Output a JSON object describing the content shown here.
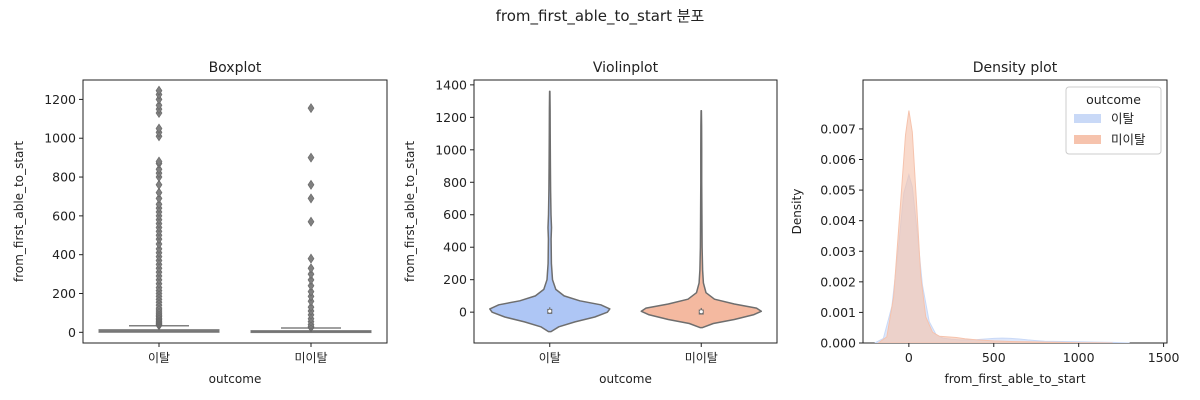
{
  "figure": {
    "title": "from_first_able_to_start 분포"
  },
  "chart_data": [
    {
      "type": "box",
      "title": "Boxplot",
      "xlabel": "outcome",
      "ylabel": "from_first_able_to_start",
      "categories": [
        "이탈",
        "미이탈"
      ],
      "ylim": [
        -55,
        1300
      ],
      "yticks": [
        0,
        200,
        400,
        600,
        800,
        1000,
        1200
      ],
      "box_color": "#808080",
      "boxes": [
        {
          "category": "이탈",
          "q1": 0,
          "median": 6,
          "q3": 14,
          "whisker_low": 0,
          "whisker_high": 34,
          "outliers": [
            36,
            40,
            45,
            52,
            58,
            65,
            72,
            80,
            88,
            95,
            105,
            115,
            125,
            140,
            155,
            170,
            185,
            200,
            215,
            230,
            250,
            270,
            290,
            310,
            330,
            350,
            370,
            390,
            410,
            430,
            455,
            480,
            500,
            520,
            540,
            560,
            580,
            600,
            620,
            640,
            660,
            690,
            720,
            760,
            800,
            820,
            840,
            870,
            880,
            1010,
            1030,
            1050,
            1130,
            1150,
            1170,
            1200,
            1225,
            1245
          ]
        },
        {
          "category": "미이탈",
          "q1": 0,
          "median": 3,
          "q3": 9,
          "whisker_low": 0,
          "whisker_high": 22,
          "outliers": [
            25,
            30,
            40,
            55,
            70,
            90,
            110,
            130,
            160,
            185,
            210,
            240,
            270,
            300,
            330,
            380,
            570,
            690,
            760,
            900,
            1155
          ]
        }
      ]
    },
    {
      "type": "violin",
      "title": "Violinplot",
      "xlabel": "outcome",
      "ylabel": "from_first_able_to_start",
      "categories": [
        "이탈",
        "미이탈"
      ],
      "ylim": [
        -190,
        1430
      ],
      "yticks": [
        0,
        200,
        400,
        600,
        800,
        1000,
        1200,
        1400
      ],
      "series": [
        {
          "category": "이탈",
          "color": "#aec6f5",
          "ymin": -120,
          "ymax": 1360,
          "q1": 0,
          "median": 6,
          "q3": 20,
          "profile": [
            [
              -120,
              0.02
            ],
            [
              -90,
              0.15
            ],
            [
              -60,
              0.42
            ],
            [
              -30,
              0.75
            ],
            [
              0,
              0.96
            ],
            [
              20,
              1.0
            ],
            [
              45,
              0.85
            ],
            [
              70,
              0.5
            ],
            [
              100,
              0.24
            ],
            [
              140,
              0.1
            ],
            [
              200,
              0.045
            ],
            [
              300,
              0.028
            ],
            [
              450,
              0.022
            ],
            [
              520,
              0.03
            ],
            [
              600,
              0.02
            ],
            [
              750,
              0.014
            ],
            [
              900,
              0.01
            ],
            [
              1100,
              0.008
            ],
            [
              1250,
              0.006
            ],
            [
              1360,
              0.002
            ]
          ]
        },
        {
          "category": "미이탈",
          "color": "#f4b9a0",
          "ymin": -95,
          "ymax": 1240,
          "q1": 0,
          "median": 3,
          "q3": 16,
          "profile": [
            [
              -95,
              0.02
            ],
            [
              -70,
              0.2
            ],
            [
              -45,
              0.55
            ],
            [
              -15,
              0.88
            ],
            [
              5,
              1.0
            ],
            [
              25,
              0.92
            ],
            [
              50,
              0.55
            ],
            [
              80,
              0.22
            ],
            [
              120,
              0.08
            ],
            [
              180,
              0.035
            ],
            [
              260,
              0.022
            ],
            [
              400,
              0.014
            ],
            [
              600,
              0.01
            ],
            [
              800,
              0.008
            ],
            [
              1000,
              0.007
            ],
            [
              1150,
              0.006
            ],
            [
              1240,
              0.002
            ]
          ]
        }
      ]
    },
    {
      "type": "area",
      "title": "Density plot",
      "xlabel": "from_first_able_to_start",
      "ylabel": "Density",
      "xlim": [
        -270,
        1520
      ],
      "ylim": [
        0,
        0.0086
      ],
      "xticks": [
        0,
        500,
        1000,
        1500
      ],
      "yticks": [
        0.0,
        0.001,
        0.002,
        0.003,
        0.004,
        0.005,
        0.006,
        0.007
      ],
      "ytick_labels": [
        "0.000",
        "0.001",
        "0.002",
        "0.003",
        "0.004",
        "0.005",
        "0.006",
        "0.007"
      ],
      "legend": {
        "title": "outcome",
        "position": "top-right"
      },
      "series": [
        {
          "name": "이탈",
          "color": "#c9d9f7",
          "x": [
            -200,
            -150,
            -100,
            -60,
            -30,
            0,
            20,
            50,
            80,
            120,
            160,
            200,
            250,
            300,
            350,
            400,
            450,
            500,
            550,
            600,
            650,
            700,
            750,
            800,
            900,
            1000,
            1100,
            1200,
            1300
          ],
          "y": [
            0.0,
            0.00015,
            0.0012,
            0.0032,
            0.0049,
            0.0055,
            0.0051,
            0.0036,
            0.0019,
            0.0007,
            0.00028,
            0.00016,
            0.00012,
            0.0001,
            0.0001,
            0.00011,
            0.00013,
            0.00015,
            0.00016,
            0.00015,
            0.00013,
            0.0001,
            8e-05,
            6e-05,
            5e-05,
            4e-05,
            3e-05,
            2e-05,
            0.0
          ]
        },
        {
          "name": "미이탈",
          "color": "#f6c3ad",
          "x": [
            -180,
            -130,
            -90,
            -50,
            -20,
            0,
            20,
            45,
            70,
            100,
            140,
            180,
            230,
            280,
            330,
            400,
            500,
            600,
            700,
            800,
            900,
            1000,
            1100,
            1200
          ],
          "y": [
            0.0,
            0.0002,
            0.0015,
            0.0045,
            0.0068,
            0.0076,
            0.0069,
            0.0046,
            0.0022,
            0.00085,
            0.00035,
            0.00022,
            0.0002,
            0.00018,
            0.00014,
            0.0001,
            7e-05,
            5e-05,
            4e-05,
            3e-05,
            2e-05,
            1e-05,
            5e-06,
            0.0
          ]
        }
      ]
    }
  ]
}
